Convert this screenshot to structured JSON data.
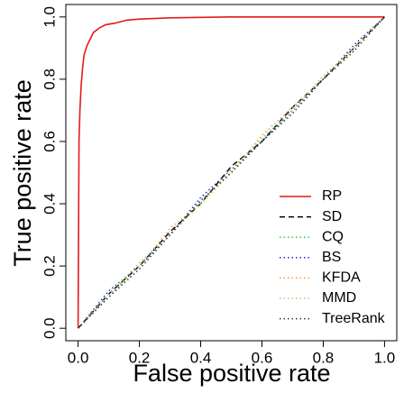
{
  "chart_data": {
    "type": "line",
    "x_label": "False positive rate",
    "y_label": "True positive rate",
    "xlim": [
      -0.04,
      1.04
    ],
    "ylim": [
      -0.04,
      1.04
    ],
    "xticks": [
      {
        "value": 0,
        "label": "0.0"
      },
      0.2,
      0.4,
      0.6,
      0.8,
      {
        "value": 1,
        "label": "1.0"
      }
    ],
    "yticks": [
      {
        "value": 0,
        "label": "0.0"
      },
      0.2,
      0.4,
      0.6,
      0.8,
      {
        "value": 1,
        "label": "1.0"
      }
    ],
    "legend": "bottomright",
    "series": [
      {
        "name": "RP",
        "color": "#e41a1c",
        "style": "solid",
        "x": [
          0,
          0.003,
          0.006,
          0.01,
          0.015,
          0.02,
          0.03,
          0.04,
          0.05,
          0.07,
          0.09,
          0.12,
          0.16,
          0.2,
          0.3,
          0.5,
          1
        ],
        "values": [
          0,
          0.6,
          0.7,
          0.78,
          0.84,
          0.88,
          0.91,
          0.93,
          0.95,
          0.965,
          0.975,
          0.98,
          0.99,
          0.993,
          0.997,
          1,
          1
        ]
      },
      {
        "name": "SD",
        "color": "#000000",
        "style": "dashed",
        "x": [
          0,
          0.1,
          0.2,
          0.3,
          0.4,
          0.5,
          0.6,
          0.7,
          0.8,
          0.9,
          1
        ],
        "values": [
          0,
          0.11,
          0.2,
          0.31,
          0.4,
          0.52,
          0.6,
          0.71,
          0.8,
          0.9,
          1
        ]
      },
      {
        "name": "CQ",
        "color": "#33cc33",
        "style": "dotted",
        "x": [
          0,
          0.1,
          0.2,
          0.3,
          0.4,
          0.5,
          0.6,
          0.7,
          0.8,
          0.9,
          1
        ],
        "values": [
          0,
          0.1,
          0.21,
          0.3,
          0.41,
          0.5,
          0.61,
          0.7,
          0.81,
          0.9,
          1
        ]
      },
      {
        "name": "BS",
        "color": "#2222cc",
        "style": "dotted",
        "x": [
          0,
          0.1,
          0.2,
          0.3,
          0.4,
          0.5,
          0.6,
          0.7,
          0.8,
          0.9,
          1
        ],
        "values": [
          0,
          0.12,
          0.2,
          0.3,
          0.42,
          0.51,
          0.6,
          0.7,
          0.8,
          0.91,
          1
        ]
      },
      {
        "name": "KFDA",
        "color": "#ff9933",
        "style": "dotted",
        "x": [
          0,
          0.1,
          0.2,
          0.3,
          0.4,
          0.5,
          0.6,
          0.7,
          0.8,
          0.9,
          1
        ],
        "values": [
          0,
          0.1,
          0.2,
          0.32,
          0.4,
          0.5,
          0.62,
          0.71,
          0.8,
          0.9,
          1
        ]
      },
      {
        "name": "MMD",
        "color": "#99dd66",
        "style": "dotted",
        "x": [
          0,
          0.1,
          0.2,
          0.3,
          0.4,
          0.5,
          0.6,
          0.7,
          0.8,
          0.9,
          1
        ],
        "values": [
          0,
          0.11,
          0.21,
          0.3,
          0.4,
          0.51,
          0.61,
          0.7,
          0.81,
          0.9,
          1
        ]
      },
      {
        "name": "TreeRank",
        "color": "#333333",
        "style": "dotted",
        "x": [
          0,
          0.1,
          0.2,
          0.3,
          0.4,
          0.5,
          0.6,
          0.7,
          0.8,
          0.9,
          1
        ],
        "values": [
          0,
          0.1,
          0.19,
          0.3,
          0.41,
          0.5,
          0.6,
          0.69,
          0.8,
          0.89,
          1
        ]
      }
    ]
  }
}
